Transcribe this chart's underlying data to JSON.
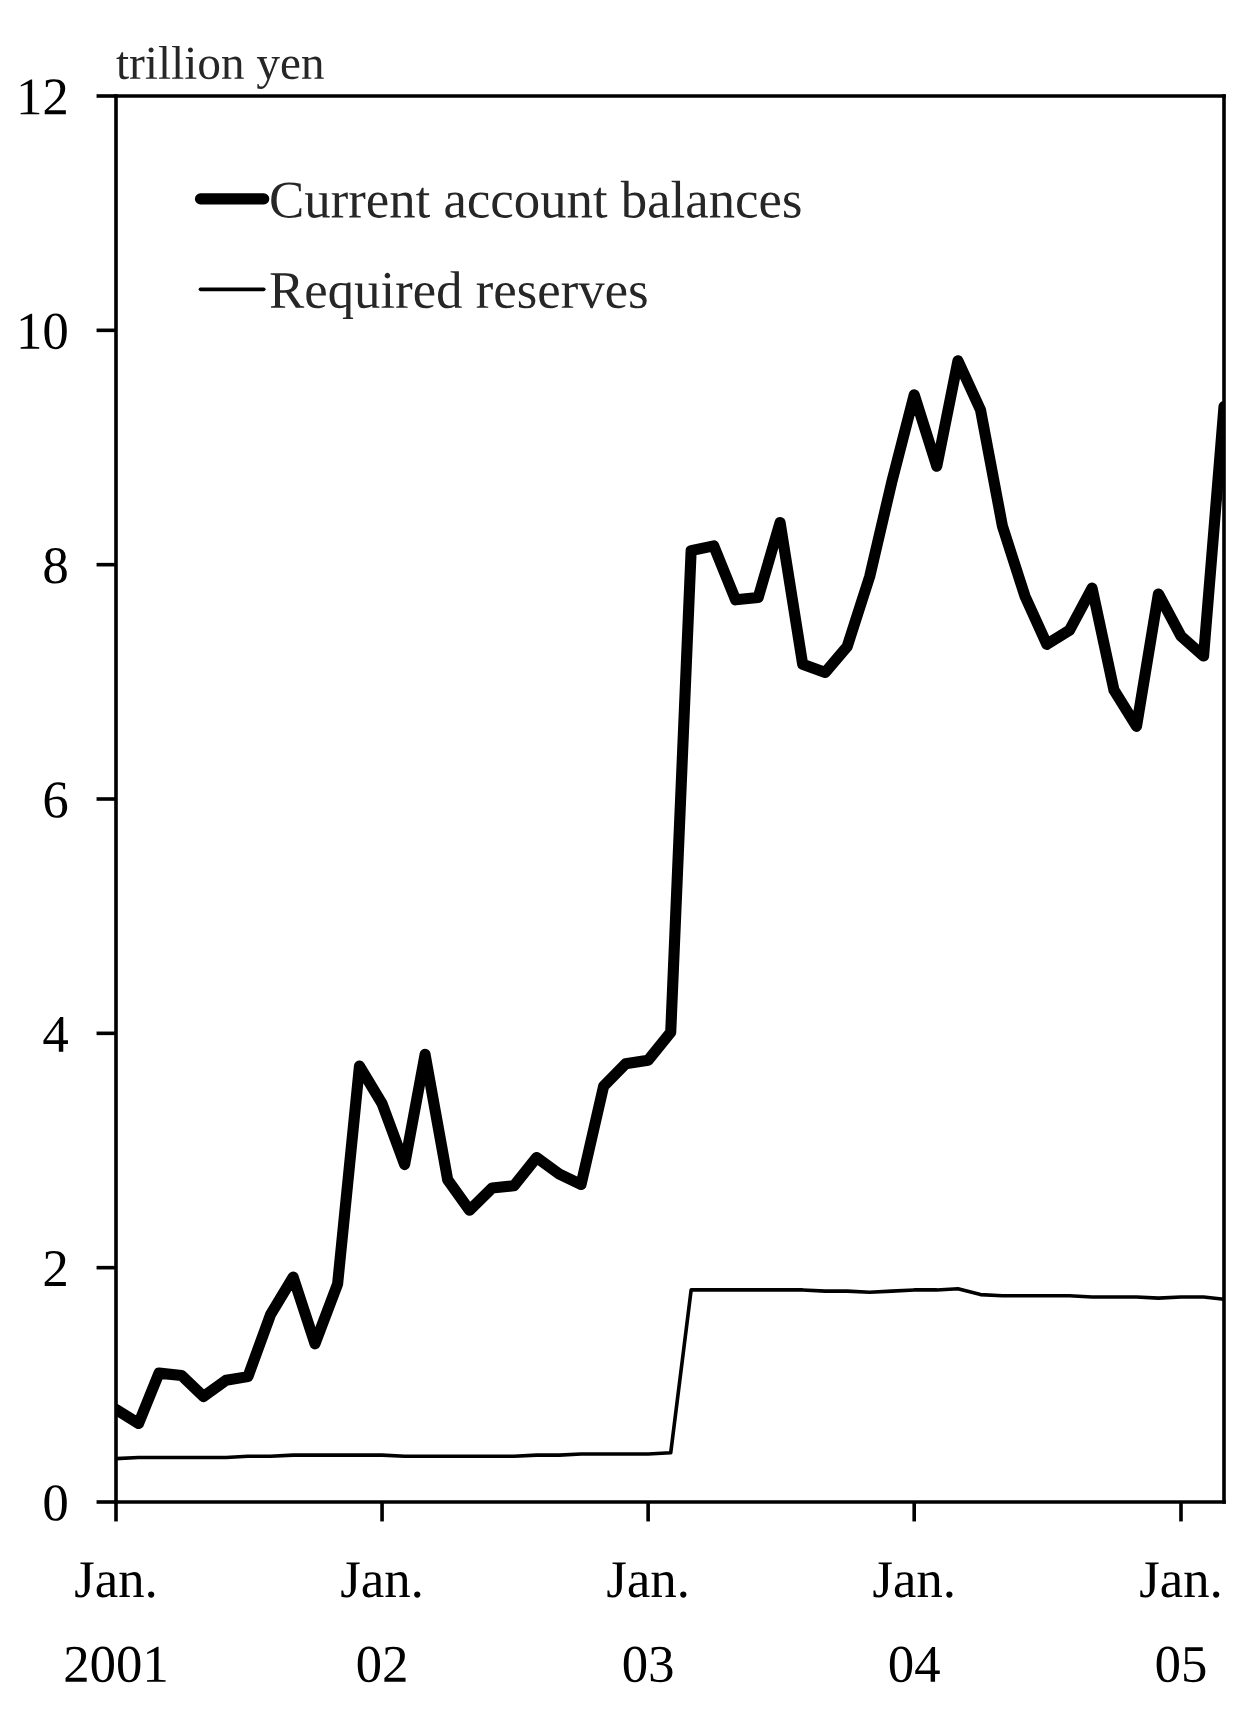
{
  "chart_data": {
    "type": "line",
    "ylabel": "trillion yen",
    "x": [
      "2001-01",
      "2001-02",
      "2001-03",
      "2001-04",
      "2001-05",
      "2001-06",
      "2001-07",
      "2001-08",
      "2001-09",
      "2001-10",
      "2001-11",
      "2001-12",
      "2002-01",
      "2002-02",
      "2002-03",
      "2002-04",
      "2002-05",
      "2002-06",
      "2002-07",
      "2002-08",
      "2002-09",
      "2002-10",
      "2002-11",
      "2002-12",
      "2003-01",
      "2003-02",
      "2003-03",
      "2003-04",
      "2003-05",
      "2003-06",
      "2003-07",
      "2003-08",
      "2003-09",
      "2003-10",
      "2003-11",
      "2003-12",
      "2004-01",
      "2004-02",
      "2004-03",
      "2004-04",
      "2004-05",
      "2004-06",
      "2004-07",
      "2004-08",
      "2004-09",
      "2004-10",
      "2004-11",
      "2004-12",
      "2005-01",
      "2005-02",
      "2005-03"
    ],
    "series": [
      {
        "name": "Current account balances",
        "color": "#000000",
        "values": [
          0.79,
          0.67,
          1.1,
          1.08,
          0.9,
          1.04,
          1.07,
          1.6,
          1.92,
          1.35,
          1.86,
          3.72,
          3.4,
          2.88,
          3.82,
          2.75,
          2.49,
          2.68,
          2.7,
          2.94,
          2.8,
          2.71,
          3.55,
          3.74,
          3.77,
          4.01,
          8.12,
          8.16,
          7.7,
          7.72,
          8.36,
          7.15,
          7.08,
          7.3,
          7.9,
          8.7,
          9.45,
          8.84,
          9.74,
          9.32,
          8.33,
          7.73,
          7.32,
          7.44,
          7.8,
          6.93,
          6.62,
          7.75,
          7.39,
          7.22,
          9.35
        ]
      },
      {
        "name": "Required reserves",
        "color": "#000000",
        "values": [
          0.37,
          0.38,
          0.38,
          0.38,
          0.38,
          0.38,
          0.39,
          0.39,
          0.4,
          0.4,
          0.4,
          0.4,
          0.4,
          0.39,
          0.39,
          0.39,
          0.39,
          0.39,
          0.39,
          0.4,
          0.4,
          0.41,
          0.41,
          0.41,
          0.41,
          0.42,
          1.81,
          1.81,
          1.81,
          1.81,
          1.81,
          1.81,
          1.8,
          1.8,
          1.79,
          1.8,
          1.81,
          1.81,
          1.82,
          1.77,
          1.76,
          1.76,
          1.76,
          1.76,
          1.75,
          1.75,
          1.75,
          1.74,
          1.75,
          1.75,
          1.73
        ]
      }
    ],
    "xlim": [
      "2001-01",
      "2005-03"
    ],
    "xticks": [
      {
        "value": "2001-01",
        "label": "Jan.\n\n2001"
      },
      {
        "value": "2002-01",
        "label": "Jan.\n\n02"
      },
      {
        "value": "2003-01",
        "label": "Jan.\n\n03"
      },
      {
        "value": "2004-01",
        "label": "Jan.\n\n04"
      },
      {
        "value": "2005-01",
        "label": "Jan.\n\n05"
      }
    ],
    "ylim": [
      0,
      12
    ],
    "yticks": [
      0,
      2,
      4,
      6,
      8,
      10,
      12
    ],
    "grid": false,
    "legend": "top left",
    "marker": "none",
    "line_style": "solid"
  }
}
